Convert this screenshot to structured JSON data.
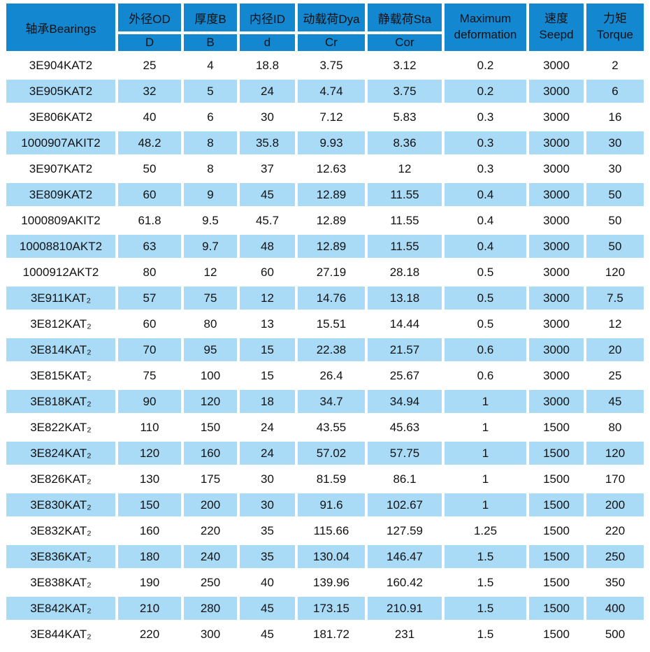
{
  "colors": {
    "header_blue": "#1487d1",
    "row_alt_blue": "#a9dbf7",
    "text": "#111111",
    "background": "#ffffff"
  },
  "header": {
    "bearings": "轴承Bearings",
    "od": {
      "top": "外径OD",
      "sub": "D"
    },
    "thickness": {
      "top": "厚度B",
      "sub": "B"
    },
    "inner_diameter": {
      "top": "内径ID",
      "sub": "d"
    },
    "dynamic_load": {
      "top": "动载荷Dya",
      "sub": "Cr"
    },
    "static_load": {
      "top": "静载荷Sta",
      "sub": "Cor"
    },
    "max_deformation": {
      "line1": "Maximum",
      "line2": "deformation"
    },
    "speed": {
      "line1": "速度",
      "line2": "Seepd"
    },
    "torque": {
      "line1": "力矩",
      "line2": "Torque"
    }
  },
  "chart_data": {
    "type": "table",
    "columns": [
      "轴承Bearings",
      "外径OD D",
      "厚度B B",
      "内径ID d",
      "动载荷Dya Cr",
      "静载荷Sta Cor",
      "Maximum deformation",
      "速度 Seepd",
      "力矩 Torque"
    ],
    "rows": [
      [
        "3E904KAT2",
        "25",
        "4",
        "18.8",
        "3.75",
        "3.12",
        "0.2",
        "3000",
        "2"
      ],
      [
        "3E905KAT2",
        "32",
        "5",
        "24",
        "4.74",
        "3.75",
        "0.2",
        "3000",
        "6"
      ],
      [
        "3E806KAT2",
        "40",
        "6",
        "30",
        "7.12",
        "5.83",
        "0.3",
        "3000",
        "16"
      ],
      [
        "1000907AKIT2",
        "48.2",
        "8",
        "35.8",
        "9.93",
        "8.36",
        "0.3",
        "3000",
        "30"
      ],
      [
        "3E907KAT2",
        "50",
        "8",
        "37",
        "12.63",
        "12",
        "0.3",
        "3000",
        "30"
      ],
      [
        "3E809KAT2",
        "60",
        "9",
        "45",
        "12.89",
        "11.55",
        "0.4",
        "3000",
        "50"
      ],
      [
        "1000809AKIT2",
        "61.8",
        "9.5",
        "45.7",
        "12.89",
        "11.55",
        "0.4",
        "3000",
        "50"
      ],
      [
        "10008810AKT2",
        "63",
        "9.7",
        "48",
        "12.89",
        "11.55",
        "0.4",
        "3000",
        "50"
      ],
      [
        "1000912AKT2",
        "80",
        "12",
        "60",
        "27.19",
        "28.18",
        "0.5",
        "3000",
        "120"
      ],
      [
        "3E911KAT₂",
        "57",
        "75",
        "12",
        "14.76",
        "13.18",
        "0.5",
        "3000",
        "7.5"
      ],
      [
        "3E812KAT₂",
        "60",
        "80",
        "13",
        "15.51",
        "14.44",
        "0.5",
        "3000",
        "12"
      ],
      [
        "3E814KAT₂",
        "70",
        "95",
        "15",
        "22.38",
        "21.57",
        "0.6",
        "3000",
        "20"
      ],
      [
        "3E815KAT₂",
        "75",
        "100",
        "15",
        "26.4",
        "25.67",
        "0.6",
        "3000",
        "25"
      ],
      [
        "3E818KAT₂",
        "90",
        "120",
        "18",
        "34.7",
        "34.94",
        "1",
        "3000",
        "45"
      ],
      [
        "3E822KAT₂",
        "110",
        "150",
        "24",
        "43.55",
        "45.63",
        "1",
        "1500",
        "80"
      ],
      [
        "3E824KAT₂",
        "120",
        "160",
        "24",
        "57.02",
        "57.75",
        "1",
        "1500",
        "120"
      ],
      [
        "3E826KAT₂",
        "130",
        "175",
        "30",
        "81.59",
        "86.1",
        "1",
        "1500",
        "170"
      ],
      [
        "3E830KAT₂",
        "150",
        "200",
        "30",
        "91.6",
        "102.67",
        "1",
        "1500",
        "200"
      ],
      [
        "3E832KAT₂",
        "160",
        "220",
        "35",
        "115.66",
        "127.59",
        "1.25",
        "1500",
        "220"
      ],
      [
        "3E836KAT₂",
        "180",
        "240",
        "35",
        "130.04",
        "146.47",
        "1.5",
        "1500",
        "250"
      ],
      [
        "3E838KAT₂",
        "190",
        "250",
        "40",
        "139.96",
        "160.42",
        "1.5",
        "1500",
        "350"
      ],
      [
        "3E842KAT₂",
        "210",
        "280",
        "45",
        "173.15",
        "210.91",
        "1.5",
        "1500",
        "400"
      ],
      [
        "3E844KAT₂",
        "220",
        "300",
        "45",
        "181.72",
        "231",
        "1.5",
        "1500",
        "500"
      ]
    ]
  }
}
